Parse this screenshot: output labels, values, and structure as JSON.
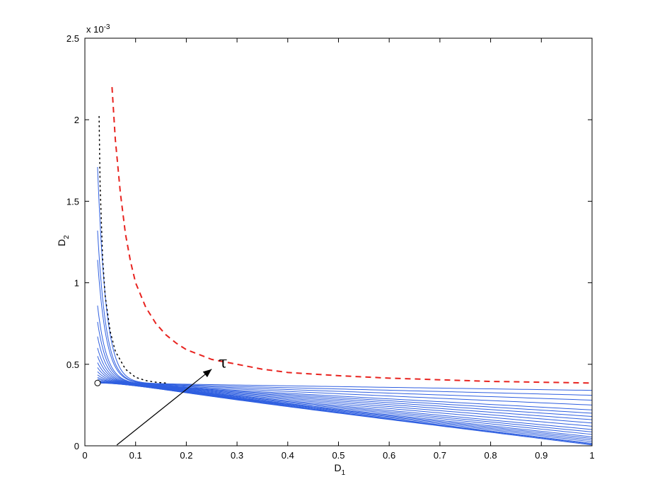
{
  "chart_data": {
    "type": "line",
    "title": "",
    "xlabel": "D",
    "xlabel_subscript": "1",
    "ylabel": "D",
    "ylabel_subscript": "2",
    "y_exponent_label": "x 10",
    "y_exponent": "-3",
    "xlim": [
      0,
      1
    ],
    "ylim": [
      0,
      2.5
    ],
    "x_ticks": [
      "0",
      "0.1",
      "0.2",
      "0.3",
      "0.4",
      "0.5",
      "0.6",
      "0.7",
      "0.8",
      "0.9",
      "1"
    ],
    "y_ticks": [
      "0",
      "0.5",
      "1",
      "1.5",
      "2",
      "2.5"
    ],
    "grid": false,
    "annotation": {
      "text": "τ",
      "arrow_from": [
        0.063,
        0.005
      ],
      "arrow_to": [
        0.25,
        0.47
      ]
    },
    "marker": {
      "shape": "circle",
      "x": 0.025,
      "y": 0.385
    },
    "colors": {
      "dashed": "#e8231f",
      "dotted": "#000000",
      "family": "#2f5fe0"
    },
    "series": [
      {
        "style": "dashed",
        "color": "#e8231f",
        "x": [
          0.0535,
          0.06,
          0.07,
          0.08,
          0.09,
          0.1,
          0.12,
          0.14,
          0.16,
          0.18,
          0.2,
          0.25,
          0.3,
          0.35,
          0.4,
          0.5,
          0.6,
          0.7,
          0.8,
          0.9,
          1.0
        ],
        "y": [
          2.2,
          1.88,
          1.55,
          1.3,
          1.13,
          1.0,
          0.85,
          0.75,
          0.68,
          0.63,
          0.59,
          0.53,
          0.5,
          0.47,
          0.45,
          0.43,
          0.415,
          0.405,
          0.395,
          0.39,
          0.385
        ]
      },
      {
        "style": "dotted",
        "color": "#000000",
        "x": [
          0.028,
          0.03,
          0.035,
          0.04,
          0.05,
          0.06,
          0.08,
          0.1,
          0.12,
          0.14,
          0.16
        ],
        "y": [
          2.02,
          1.6,
          1.15,
          0.92,
          0.7,
          0.58,
          0.47,
          0.42,
          0.4,
          0.39,
          0.385
        ]
      }
    ],
    "curve_family": {
      "style": "solid",
      "color": "#2f5fe0",
      "count": 20,
      "x_start": 0.025,
      "converge_y": 0.385,
      "start_y": [
        1.71,
        1.32,
        1.14,
        0.86,
        0.76,
        0.67,
        0.6,
        0.55,
        0.51,
        0.48,
        0.455,
        0.435,
        0.42,
        0.41,
        0.4,
        0.395,
        0.39,
        0.388,
        0.386,
        0.385
      ],
      "end_y_at_x1": [
        0.34,
        0.31,
        0.28,
        0.25,
        0.22,
        0.2,
        0.18,
        0.16,
        0.14,
        0.12,
        0.1,
        0.085,
        0.07,
        0.055,
        0.045,
        0.035,
        0.025,
        0.015,
        0.01,
        0.005
      ]
    }
  }
}
